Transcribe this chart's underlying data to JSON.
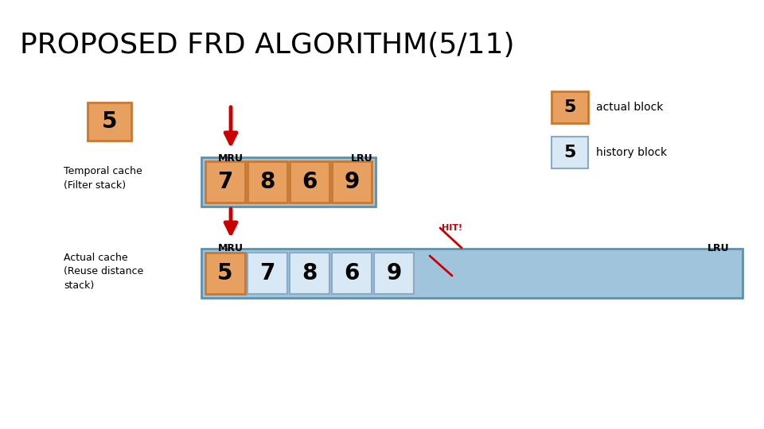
{
  "title": "PROPOSED FRD ALGORITHM(5/11)",
  "title_fontsize": 26,
  "background_color": "#ffffff",
  "orange_color": "#E8A060",
  "orange_border": "#C87830",
  "light_blue_bg": "#A0C4DC",
  "light_blue_border": "#6090A8",
  "history_block_color": "#D8E8F4",
  "history_block_border": "#8AAAC8",
  "red_arrow_color": "#CC0000",
  "temporal_cache_values": [
    "7",
    "8",
    "6",
    "9"
  ],
  "actual_cache_values": [
    "5",
    "7",
    "8",
    "6",
    "9"
  ],
  "actual_cache_colors": [
    "orange",
    "history",
    "history",
    "history",
    "history"
  ]
}
